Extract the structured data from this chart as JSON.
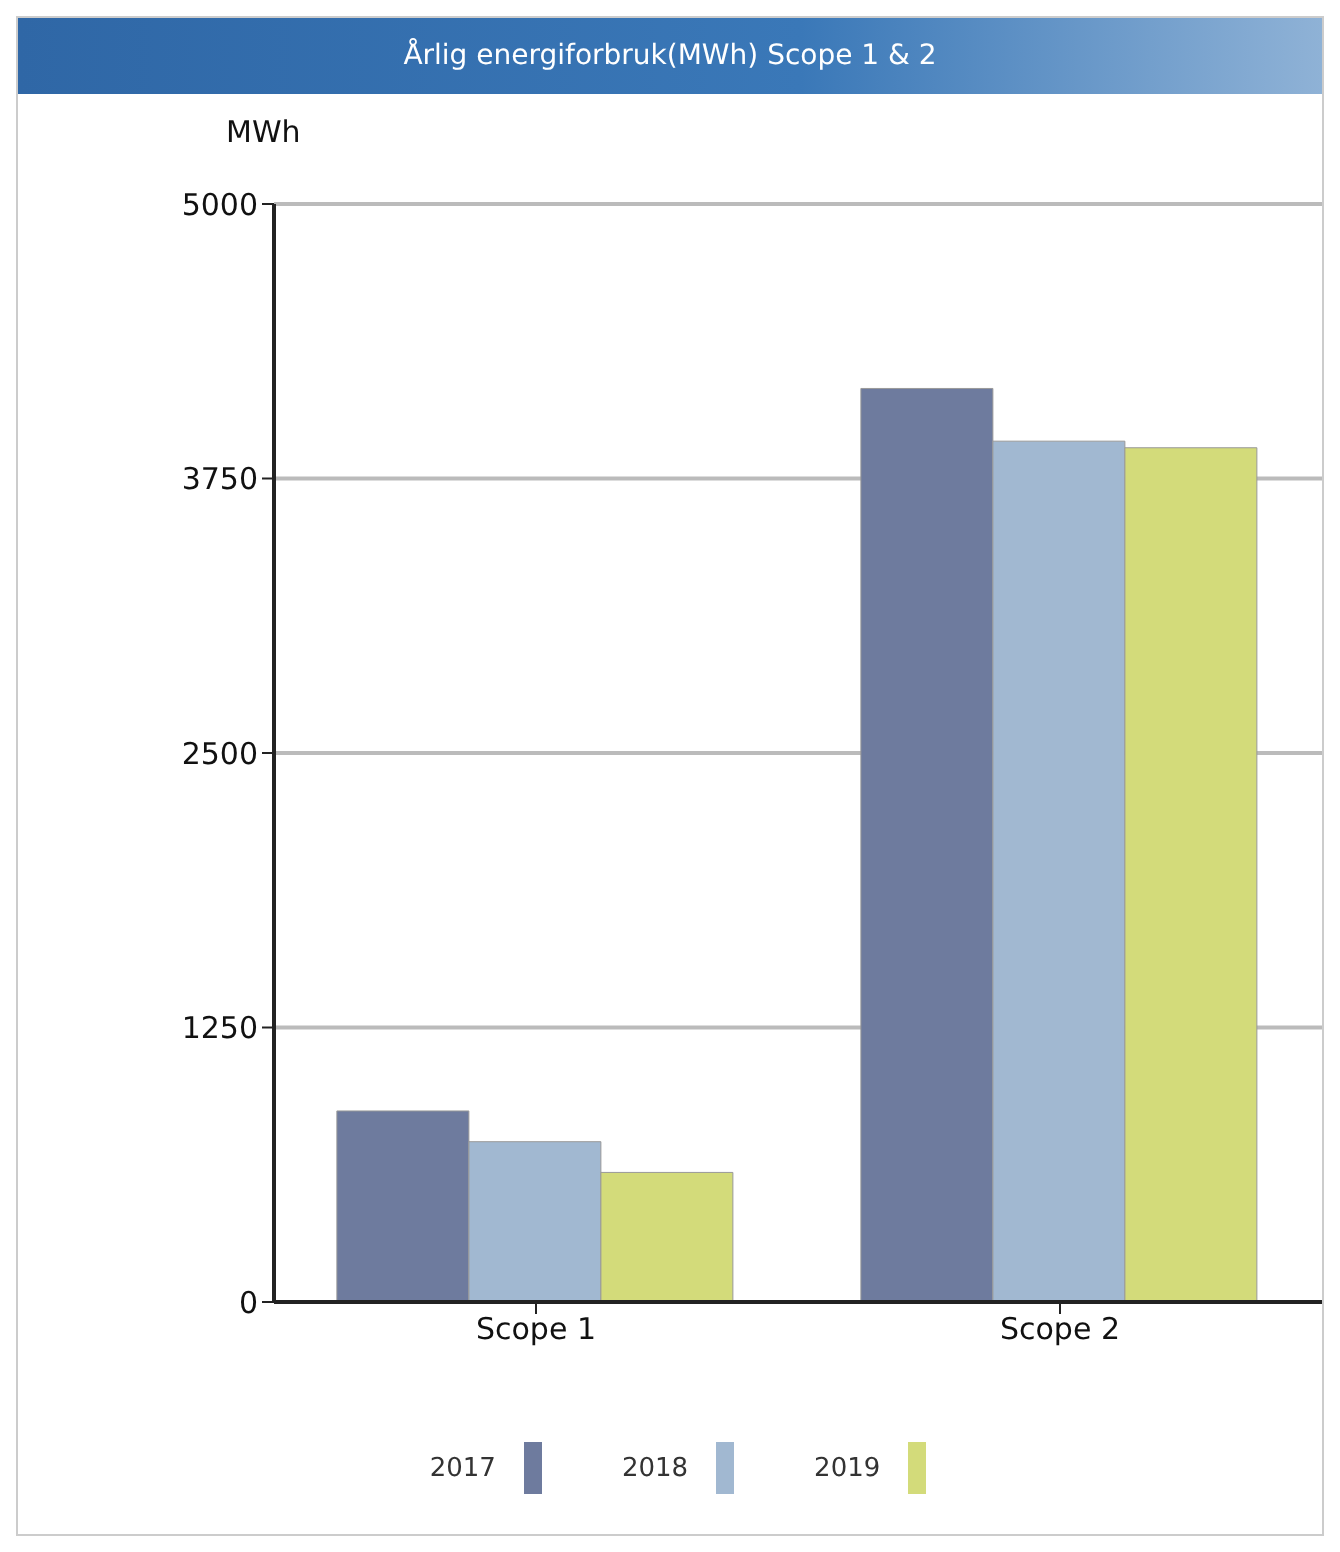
{
  "chart_data": {
    "type": "bar",
    "title": "Årlig energiforbruk(MWh) Scope 1 & 2",
    "ylabel": "MWh",
    "categories": [
      "Scope 1",
      "Scope 2"
    ],
    "series": [
      {
        "name": "2017",
        "color": "#6e7b9e",
        "values": [
          870,
          4160
        ]
      },
      {
        "name": "2018",
        "color": "#a1b8d1",
        "values": [
          730,
          3920
        ]
      },
      {
        "name": "2019",
        "color": "#d3db7a",
        "values": [
          590,
          3890
        ]
      }
    ],
    "ylim": [
      0,
      5000
    ],
    "yticks": [
      0,
      1250,
      2500,
      3750,
      5000
    ],
    "grid": "y",
    "legend": "bottom"
  }
}
